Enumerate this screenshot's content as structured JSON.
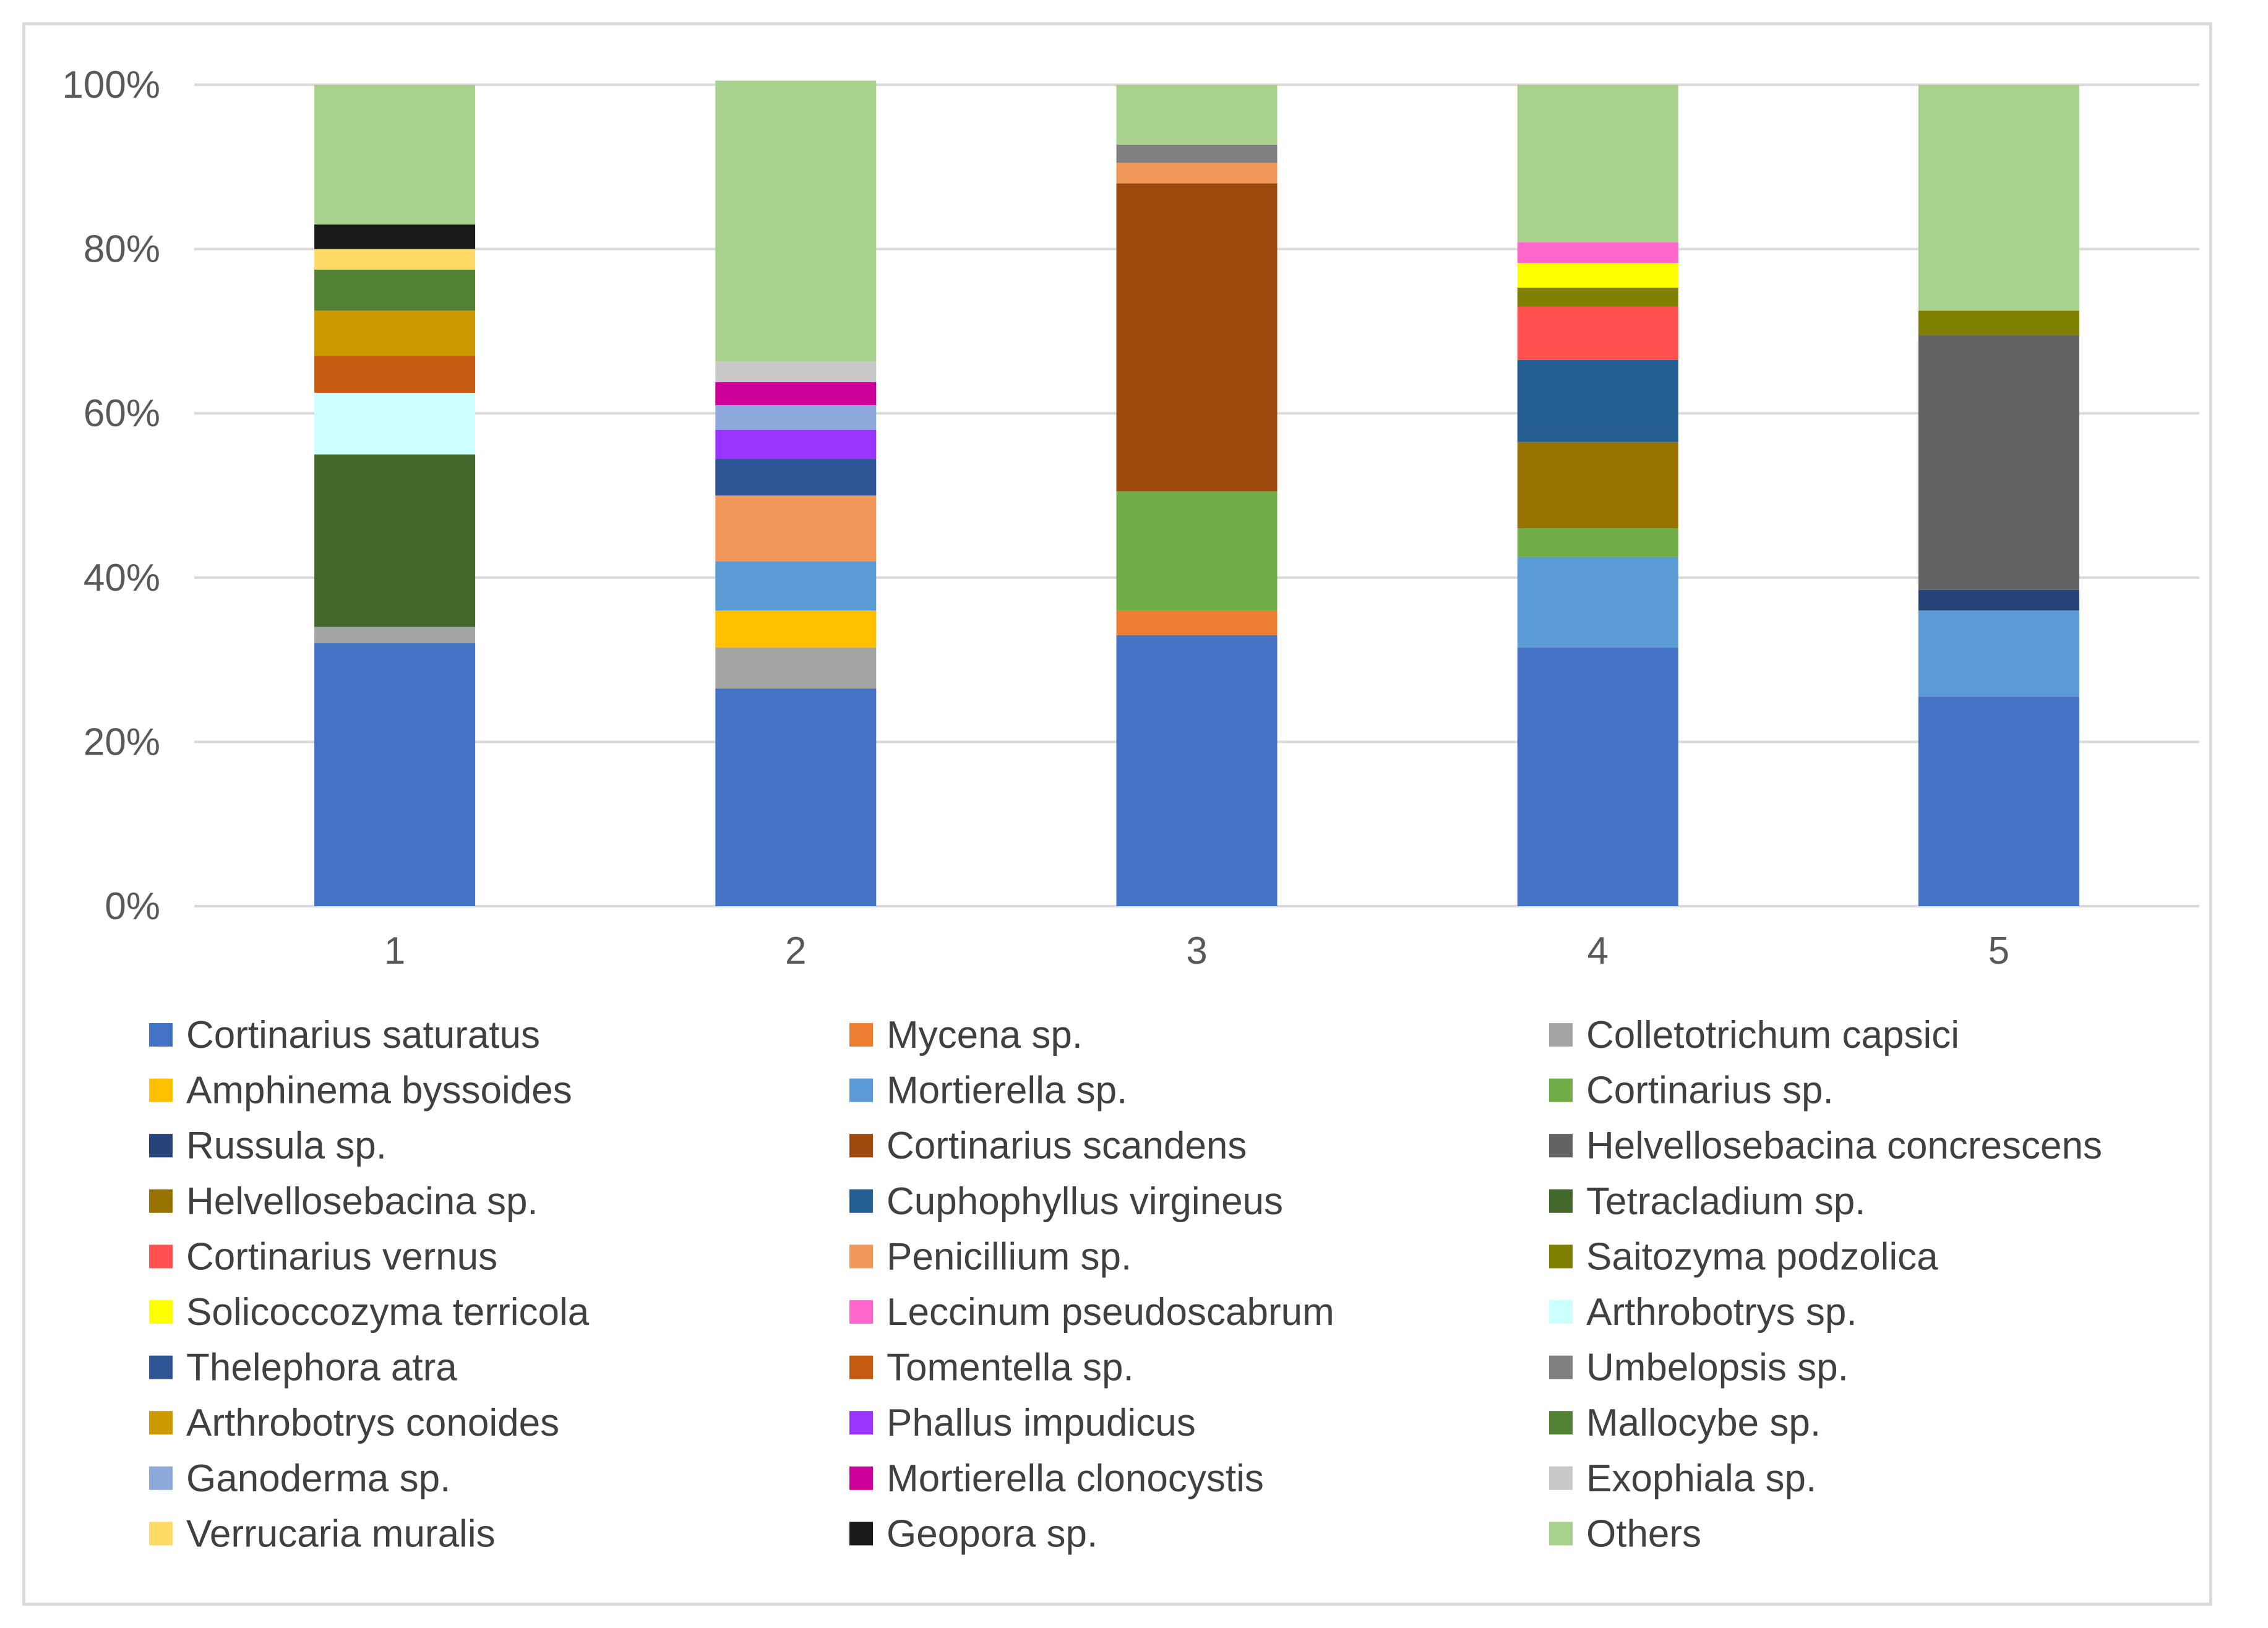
{
  "chart_data": {
    "type": "bar",
    "stacked": true,
    "normalized_percent": true,
    "title": "",
    "xlabel": "",
    "ylabel": "",
    "ylim": [
      0,
      100
    ],
    "y_ticks": [
      "0%",
      "20%",
      "40%",
      "60%",
      "80%",
      "100%"
    ],
    "grid": true,
    "legend_position": "bottom",
    "categories": [
      "1",
      "2",
      "3",
      "4",
      "5"
    ],
    "series": [
      {
        "name": "Cortinarius saturatus",
        "color": "#4472C4",
        "values": [
          32,
          26.5,
          33,
          31.5,
          25.5
        ]
      },
      {
        "name": "Mycena sp.",
        "color": "#ED7D31",
        "values": [
          0,
          0,
          3,
          0,
          0
        ]
      },
      {
        "name": "Colletotrichum capsici",
        "color": "#A5A5A5",
        "values": [
          2,
          5,
          0,
          0,
          0
        ]
      },
      {
        "name": "Amphinema byssoides",
        "color": "#FFC000",
        "values": [
          0,
          4.5,
          0,
          0,
          0
        ]
      },
      {
        "name": "Mortierella sp.",
        "color": "#5B9BD5",
        "values": [
          0,
          6,
          0,
          11,
          10.5
        ]
      },
      {
        "name": "Cortinarius sp.",
        "color": "#70AD47",
        "values": [
          0,
          0,
          14.5,
          3.5,
          0
        ]
      },
      {
        "name": "Russula sp.",
        "color": "#264478",
        "values": [
          0,
          0,
          0,
          0,
          2.5
        ]
      },
      {
        "name": "Cortinarius scandens",
        "color": "#9E480E",
        "values": [
          0,
          0,
          37.5,
          0,
          0
        ]
      },
      {
        "name": "Helvellosebacina concrescens",
        "color": "#636363",
        "values": [
          0,
          0,
          0,
          0,
          31
        ]
      },
      {
        "name": "Helvellosebacina sp.",
        "color": "#997300",
        "values": [
          0,
          0,
          0,
          10.5,
          0
        ]
      },
      {
        "name": "Cuphophyllus virgineus",
        "color": "#255E91",
        "values": [
          0,
          0,
          0,
          10,
          0
        ]
      },
      {
        "name": "Tetracladium sp.",
        "color": "#43682B",
        "values": [
          21,
          0,
          0,
          0,
          0
        ]
      },
      {
        "name": "Cortinarius vernus",
        "color": "#FF5050",
        "values": [
          0,
          0,
          0,
          6.5,
          0
        ]
      },
      {
        "name": "Penicillium sp.",
        "color": "#F1975A",
        "values": [
          0,
          8,
          2.5,
          0,
          0
        ]
      },
      {
        "name": "Saitozyma podzolica",
        "color": "#7F7F00",
        "values": [
          0,
          0,
          0,
          2.3,
          3
        ]
      },
      {
        "name": "Solicoccozyma terricola",
        "color": "#FFFF00",
        "values": [
          0,
          0,
          0,
          3,
          0
        ]
      },
      {
        "name": "Leccinum pseudoscabrum",
        "color": "#FF66CC",
        "values": [
          0,
          0,
          0,
          2.5,
          0
        ]
      },
      {
        "name": "Arthrobotrys sp.",
        "color": "#CCFFFF",
        "values": [
          7.5,
          0,
          0,
          0,
          0
        ]
      },
      {
        "name": "Thelephora atra",
        "color": "#2F5597",
        "values": [
          0,
          4.5,
          0,
          0,
          0
        ]
      },
      {
        "name": "Tomentella sp.",
        "color": "#C55A11",
        "values": [
          4.5,
          0,
          0,
          0,
          0
        ]
      },
      {
        "name": "Umbelopsis sp.",
        "color": "#808080",
        "values": [
          0,
          0,
          2.2,
          0,
          0
        ]
      },
      {
        "name": "Arthrobotrys conoides",
        "color": "#CC9900",
        "values": [
          5.5,
          0,
          0,
          0,
          0
        ]
      },
      {
        "name": "Phallus impudicus",
        "color": "#9933FF",
        "values": [
          0,
          3.5,
          0,
          0,
          0
        ]
      },
      {
        "name": "Mallocybe sp.",
        "color": "#548235",
        "values": [
          5,
          0,
          0,
          0,
          0
        ]
      },
      {
        "name": "Ganoderma sp.",
        "color": "#8EA9DB",
        "values": [
          0,
          3,
          0,
          0,
          0
        ]
      },
      {
        "name": "Mortierella clonocystis",
        "color": "#CC0099",
        "values": [
          0,
          2.8,
          0,
          0,
          0
        ]
      },
      {
        "name": "Exophiala sp.",
        "color": "#C9C9C9",
        "values": [
          0,
          2.5,
          0,
          0,
          0
        ]
      },
      {
        "name": "Verrucaria muralis",
        "color": "#FFD966",
        "values": [
          2.5,
          0,
          0,
          0,
          0
        ]
      },
      {
        "name": "Geopora sp.",
        "color": "#1A1A1A",
        "values": [
          3,
          0,
          0,
          0,
          0
        ]
      },
      {
        "name": "Others",
        "color": "#A9D18E",
        "values": [
          17,
          34.2,
          7.3,
          19.2,
          27.5
        ]
      }
    ]
  }
}
